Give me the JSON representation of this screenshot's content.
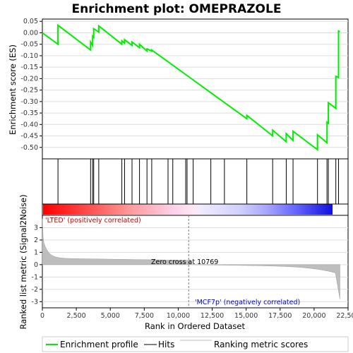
{
  "chart_data": {
    "type": "line",
    "title": "Enrichment plot: OMEPRAZOLE",
    "ylabel_top": "Enrichment score (ES)",
    "ylabel_bottom": "Ranked list metric (Signal2Noise)",
    "xlabel": "Rank in Ordered Dataset",
    "xlim": [
      0,
      22500
    ],
    "ylim_top": [
      -0.55,
      0.06
    ],
    "ylim_bottom": [
      -3.5,
      4
    ],
    "x_ticks": [
      0,
      2500,
      5000,
      7500,
      10000,
      12500,
      15000,
      17500,
      20000,
      22500
    ],
    "x_tick_labels": [
      "0",
      "2,500",
      "5,000",
      "7,500",
      "10,000",
      "12,500",
      "15,000",
      "17,500",
      "20,000",
      "22,500"
    ],
    "y_ticks_top": [
      0.05,
      0.0,
      -0.05,
      -0.1,
      -0.15,
      -0.2,
      -0.25,
      -0.3,
      -0.35,
      -0.4,
      -0.45,
      -0.5
    ],
    "y_tick_labels_top": [
      "0.05",
      "0.00",
      "-0.05",
      "-0.10",
      "-0.15",
      "-0.20",
      "-0.25",
      "-0.30",
      "-0.35",
      "-0.40",
      "-0.45",
      "-0.50"
    ],
    "y_ticks_bottom": [
      3,
      2,
      1,
      0,
      -1,
      -2,
      -3
    ],
    "y_tick_labels_bottom": [
      "3",
      "2",
      "1",
      "0",
      "-1",
      "-2",
      "-3"
    ],
    "hits": [
      1150,
      3550,
      3700,
      3780,
      4150,
      5850,
      6050,
      6600,
      7150,
      7700,
      8050,
      9250,
      9600,
      10550,
      10650,
      11100,
      12400,
      13400,
      15050,
      16950,
      17950,
      18450,
      20250,
      20950,
      21050,
      21600,
      21800
    ],
    "es_profile": [
      [
        0,
        0.0
      ],
      [
        1150,
        -0.05
      ],
      [
        1150,
        0.033
      ],
      [
        3550,
        -0.075
      ],
      [
        3550,
        -0.04
      ],
      [
        3700,
        -0.055
      ],
      [
        3700,
        -0.015
      ],
      [
        3780,
        -0.02
      ],
      [
        3780,
        0.018
      ],
      [
        4150,
        0.003
      ],
      [
        4150,
        0.03
      ],
      [
        5850,
        -0.05
      ],
      [
        5850,
        -0.035
      ],
      [
        6050,
        -0.045
      ],
      [
        6050,
        -0.03
      ],
      [
        6600,
        -0.055
      ],
      [
        6600,
        -0.04
      ],
      [
        7150,
        -0.065
      ],
      [
        7150,
        -0.05
      ],
      [
        7700,
        -0.08
      ],
      [
        7700,
        -0.07
      ],
      [
        8050,
        -0.08
      ],
      [
        8050,
        -0.075
      ],
      [
        15050,
        -0.375
      ],
      [
        15050,
        -0.36
      ],
      [
        16950,
        -0.45
      ],
      [
        16950,
        -0.425
      ],
      [
        17950,
        -0.475
      ],
      [
        17950,
        -0.44
      ],
      [
        18450,
        -0.47
      ],
      [
        18450,
        -0.43
      ],
      [
        20250,
        -0.51
      ],
      [
        20250,
        -0.445
      ],
      [
        20950,
        -0.48
      ],
      [
        20950,
        -0.39
      ],
      [
        21050,
        -0.395
      ],
      [
        21050,
        -0.305
      ],
      [
        21600,
        -0.33
      ],
      [
        21600,
        -0.19
      ],
      [
        21800,
        -0.195
      ],
      [
        21800,
        0.008
      ],
      [
        21900,
        0.005
      ]
    ],
    "zero_cross": 10769,
    "zero_cross_label": "Zero cross at 10769",
    "pos_label": "'LTED' (positively correlated)",
    "neg_label": "'MCF7p' (negatively correlated)",
    "n_genes": 21900,
    "legend": [
      "Enrichment profile",
      "Hits",
      "Ranking metric scores"
    ],
    "colors": {
      "profile": "#00ee00",
      "hits": "#000000",
      "metric_fill": "#bebebe",
      "pos_text": "#cc0000",
      "neg_text": "#0000cc",
      "grid": "#dddddd",
      "zero_line": "#808080"
    }
  }
}
